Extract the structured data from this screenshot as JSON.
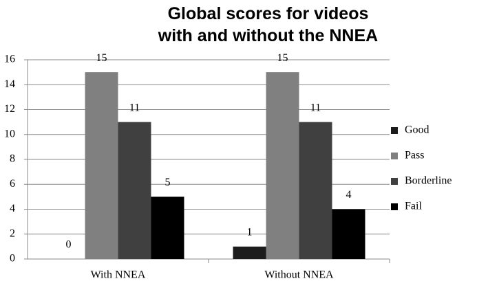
{
  "chart_data": {
    "type": "bar",
    "title": "Global scores for videos\nwith and without the NNEA",
    "categories": [
      "With NNEA",
      "Without NNEA"
    ],
    "series": [
      {
        "name": "Good",
        "color": "#1c1c1c",
        "values": [
          0,
          1
        ]
      },
      {
        "name": "Pass",
        "color": "#808080",
        "values": [
          15,
          15
        ]
      },
      {
        "name": "Borderline",
        "color": "#404040",
        "values": [
          11,
          11
        ]
      },
      {
        "name": "Fail",
        "color": "#000000",
        "values": [
          5,
          4
        ]
      }
    ],
    "ylim": [
      0,
      16
    ],
    "yticks": [
      0,
      2,
      4,
      6,
      8,
      10,
      12,
      14,
      16
    ],
    "grid": true,
    "legend": "right"
  }
}
